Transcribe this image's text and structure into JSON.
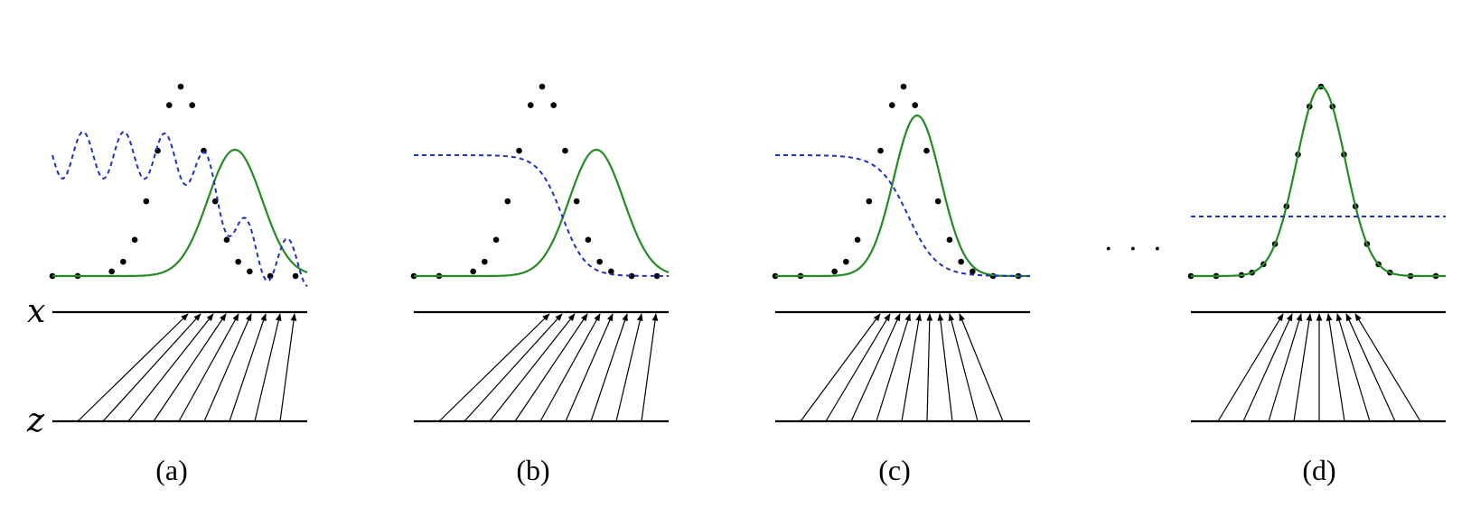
{
  "axis_labels": {
    "x": "x",
    "z": "z"
  },
  "panel_labels": [
    "(a)",
    "(b)",
    "(c)",
    "(d)"
  ],
  "ellipsis": "· · ·",
  "colors": {
    "green": "#228b22",
    "blue": "#1f2fbf",
    "black": "#000000"
  }
}
